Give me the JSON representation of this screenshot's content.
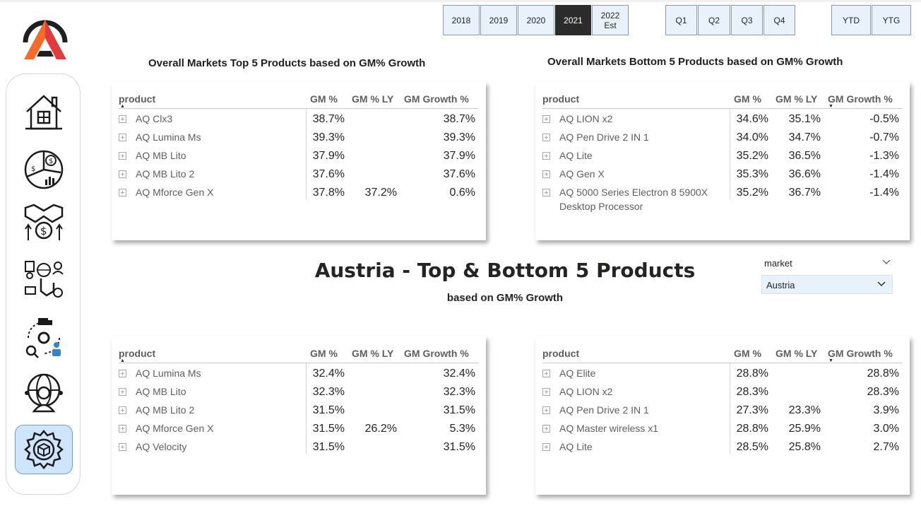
{
  "years": [
    "2018",
    "2019",
    "2020",
    "2021",
    "2022|Est"
  ],
  "year_selected": "2021",
  "quarters": [
    "Q1",
    "Q2",
    "Q3",
    "Q4"
  ],
  "periods": [
    "YTD",
    "YTG"
  ],
  "nav_icons": [
    "home-icon",
    "finance-pie-icon",
    "sales-handshake-icon",
    "marketing-icon",
    "supply-chain-icon",
    "global-user-icon",
    "settings-product-icon"
  ],
  "nav_active": "settings-product-icon",
  "colors": {
    "accent": "#cfe5fb",
    "selected": "#2b2b2b",
    "logo_orange": "#f26b2a",
    "logo_red": "#e23b3b"
  },
  "overall_top": {
    "title": "Overall Markets Top 5 Products based on GM% Growth",
    "headers": [
      "product",
      "GM %",
      "GM % LY",
      "GM Growth %"
    ],
    "sort_on": "product",
    "rows": [
      {
        "product": "AQ Clx3",
        "gm": "38.7%",
        "gm_ly": "",
        "growth": "38.7%"
      },
      {
        "product": "AQ Lumina Ms",
        "gm": "39.3%",
        "gm_ly": "",
        "growth": "39.3%"
      },
      {
        "product": "AQ MB Lito",
        "gm": "37.9%",
        "gm_ly": "",
        "growth": "37.9%"
      },
      {
        "product": "AQ MB Lito 2",
        "gm": "37.6%",
        "gm_ly": "",
        "growth": "37.6%"
      },
      {
        "product": "AQ Mforce Gen X",
        "gm": "37.8%",
        "gm_ly": "37.2%",
        "growth": "0.6%"
      }
    ]
  },
  "overall_bottom": {
    "title": "Overall Markets Bottom 5 Products based on GM% Growth",
    "headers": [
      "product",
      "GM %",
      "GM % LY",
      "GM Growth %"
    ],
    "sort_on": "GM Growth %",
    "rows": [
      {
        "product": "AQ LION x2",
        "gm": "34.6%",
        "gm_ly": "35.1%",
        "growth": "-0.5%"
      },
      {
        "product": "AQ Pen Drive 2 IN 1",
        "gm": "34.0%",
        "gm_ly": "34.7%",
        "growth": "-0.7%"
      },
      {
        "product": "AQ Lite",
        "gm": "35.2%",
        "gm_ly": "36.5%",
        "growth": "-1.3%"
      },
      {
        "product": "AQ Gen X",
        "gm": "35.3%",
        "gm_ly": "36.6%",
        "growth": "-1.4%"
      },
      {
        "product": "AQ 5000 Series Electron 8 5900X Desktop Processor",
        "gm": "35.2%",
        "gm_ly": "36.7%",
        "growth": "-1.4%"
      }
    ]
  },
  "center": {
    "title": "Austria - Top & Bottom 5 Products",
    "subtitle": "based on GM% Growth"
  },
  "market_slicer": {
    "label": "market",
    "value": "Austria"
  },
  "country_top": {
    "headers": [
      "product",
      "GM %",
      "GM % LY",
      "GM Growth %"
    ],
    "sort_on": "product",
    "rows": [
      {
        "product": "AQ Lumina Ms",
        "gm": "32.4%",
        "gm_ly": "",
        "growth": "32.4%"
      },
      {
        "product": "AQ MB Lito",
        "gm": "32.3%",
        "gm_ly": "",
        "growth": "32.3%"
      },
      {
        "product": "AQ MB Lito 2",
        "gm": "31.5%",
        "gm_ly": "",
        "growth": "31.5%"
      },
      {
        "product": "AQ Mforce Gen X",
        "gm": "31.5%",
        "gm_ly": "26.2%",
        "growth": "5.3%"
      },
      {
        "product": "AQ Velocity",
        "gm": "31.5%",
        "gm_ly": "",
        "growth": "31.5%"
      }
    ]
  },
  "country_bottom": {
    "headers": [
      "product",
      "GM %",
      "GM % LY",
      "GM Growth %"
    ],
    "sort_on": "GM Growth %",
    "rows": [
      {
        "product": "AQ Elite",
        "gm": "28.8%",
        "gm_ly": "",
        "growth": "28.8%"
      },
      {
        "product": "AQ LION x2",
        "gm": "28.3%",
        "gm_ly": "",
        "growth": "28.3%"
      },
      {
        "product": "AQ Pen Drive 2 IN 1",
        "gm": "27.3%",
        "gm_ly": "23.3%",
        "growth": "3.9%"
      },
      {
        "product": "AQ Master wireless x1",
        "gm": "28.8%",
        "gm_ly": "25.9%",
        "growth": "3.0%"
      },
      {
        "product": "AQ Lite",
        "gm": "28.5%",
        "gm_ly": "25.8%",
        "growth": "2.7%"
      }
    ]
  }
}
